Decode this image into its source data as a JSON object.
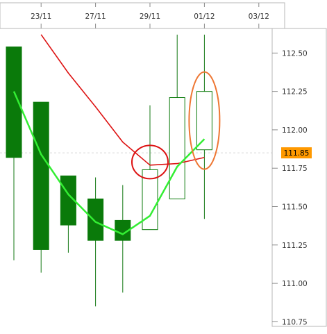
{
  "chart_data": {
    "type": "candlestick",
    "x_labels": [
      "23/11",
      "27/11",
      "29/11",
      "01/12",
      "03/12"
    ],
    "y_ticks": [
      "112.50",
      "112.25",
      "112.00",
      "111.75",
      "111.50",
      "111.25",
      "111.00",
      "110.75"
    ],
    "ylim": [
      110.72,
      112.66
    ],
    "current_price": "111.85",
    "candles": [
      {
        "open": 112.54,
        "high": 112.54,
        "low": 111.15,
        "close": 111.82,
        "direction": "down"
      },
      {
        "open": 112.18,
        "high": 112.18,
        "low": 111.07,
        "close": 111.22,
        "direction": "down"
      },
      {
        "open": 111.7,
        "high": 111.7,
        "low": 111.2,
        "close": 111.38,
        "direction": "down"
      },
      {
        "open": 111.55,
        "high": 111.69,
        "low": 110.85,
        "close": 111.28,
        "direction": "down"
      },
      {
        "open": 111.41,
        "high": 111.64,
        "low": 110.94,
        "close": 111.28,
        "direction": "down"
      },
      {
        "open": 111.35,
        "high": 112.16,
        "low": 111.35,
        "close": 111.74,
        "direction": "up"
      },
      {
        "open": 111.55,
        "high": 112.62,
        "low": 111.55,
        "close": 112.21,
        "direction": "up"
      },
      {
        "open": 111.87,
        "high": 112.62,
        "low": 111.42,
        "close": 112.25,
        "direction": "up"
      }
    ],
    "series": [
      {
        "color": "#dd1111",
        "values": [
          null,
          112.62,
          112.37,
          112.15,
          111.92,
          111.77,
          111.78,
          111.82
        ]
      },
      {
        "color": "#33ee33",
        "values": [
          112.25,
          111.84,
          111.58,
          111.4,
          111.32,
          111.44,
          111.76,
          111.94
        ]
      }
    ],
    "annotations": [
      {
        "shape": "ellipse",
        "color": "#dd1111",
        "x_index": 5,
        "y": 111.79
      },
      {
        "shape": "ellipse",
        "color": "#ee7733",
        "x_index": 7,
        "y": 112.06
      }
    ],
    "colors": {
      "up_fill": "#ffffff",
      "down_fill": "#0a7a0a",
      "candle_edge": "#0a7a0a",
      "wick": "#117711",
      "grid": "#cccccc",
      "price_badge": "#ff9900"
    },
    "grid": true
  }
}
